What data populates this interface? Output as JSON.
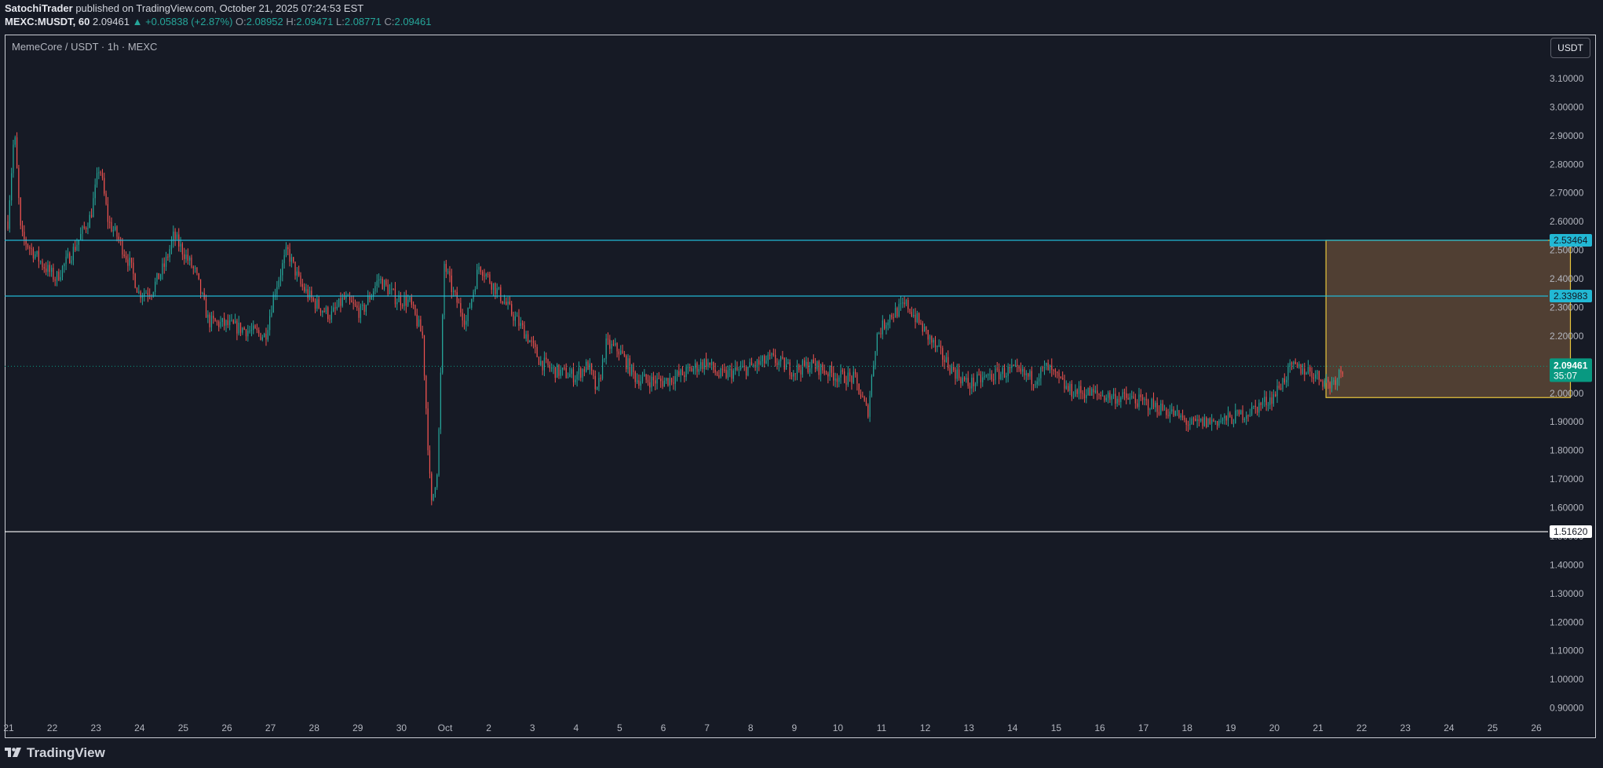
{
  "header": {
    "author": "SatochiTrader",
    "published": " published on TradingView.com, October 21, 2025 07:24:53 EST",
    "symbol": "MEXC:MUSDT, 60",
    "last": "2.09461",
    "change": "▲ +0.05838 (+2.87%)",
    "o_label": "O:",
    "o": "2.08952",
    "h_label": "H:",
    "h": "2.09471",
    "l_label": "L:",
    "l": "2.08771",
    "c_label": "C:",
    "c": "2.09461"
  },
  "symbol_title": "MemeCore / USDT · 1h · MEXC",
  "currency_button": "USDT",
  "footer": {
    "brand": "TradingView"
  },
  "chart_data": {
    "type": "candlestick",
    "title": "MemeCore / USDT · 1h · MEXC",
    "ylim": [
      0.85,
      3.15
    ],
    "y_ticks": [
      "3.10000",
      "3.00000",
      "2.90000",
      "2.80000",
      "2.70000",
      "2.60000",
      "2.50000",
      "2.40000",
      "2.30000",
      "2.20000",
      "2.10000",
      "2.00000",
      "1.90000",
      "1.80000",
      "1.70000",
      "1.60000",
      "1.50000",
      "1.40000",
      "1.30000",
      "1.20000",
      "1.10000",
      "1.00000",
      "0.90000"
    ],
    "x_ticks": [
      "21",
      "22",
      "23",
      "24",
      "25",
      "26",
      "27",
      "28",
      "29",
      "30",
      "Oct",
      "2",
      "3",
      "4",
      "5",
      "6",
      "7",
      "8",
      "9",
      "10",
      "11",
      "12",
      "13",
      "14",
      "15",
      "16",
      "17",
      "18",
      "19",
      "20",
      "21",
      "22",
      "23",
      "24",
      "25",
      "26"
    ],
    "x_range_days": [
      0,
      36
    ],
    "price_path": [
      [
        0.0,
        2.6
      ],
      [
        0.15,
        2.92
      ],
      [
        0.3,
        2.55
      ],
      [
        0.8,
        2.45
      ],
      [
        1.1,
        2.4
      ],
      [
        1.5,
        2.5
      ],
      [
        1.9,
        2.62
      ],
      [
        2.1,
        2.8
      ],
      [
        2.3,
        2.6
      ],
      [
        2.5,
        2.55
      ],
      [
        2.8,
        2.45
      ],
      [
        3.0,
        2.35
      ],
      [
        3.3,
        2.36
      ],
      [
        3.6,
        2.45
      ],
      [
        3.8,
        2.55
      ],
      [
        4.0,
        2.5
      ],
      [
        4.3,
        2.42
      ],
      [
        4.6,
        2.25
      ],
      [
        5.0,
        2.24
      ],
      [
        5.5,
        2.22
      ],
      [
        5.9,
        2.2
      ],
      [
        6.1,
        2.35
      ],
      [
        6.4,
        2.5
      ],
      [
        6.7,
        2.38
      ],
      [
        7.0,
        2.32
      ],
      [
        7.4,
        2.27
      ],
      [
        7.7,
        2.33
      ],
      [
        8.1,
        2.28
      ],
      [
        8.5,
        2.4
      ],
      [
        8.9,
        2.33
      ],
      [
        9.2,
        2.32
      ],
      [
        9.5,
        2.2
      ],
      [
        9.6,
        1.9
      ],
      [
        9.7,
        1.6
      ],
      [
        9.85,
        1.75
      ],
      [
        10.0,
        2.45
      ],
      [
        10.2,
        2.35
      ],
      [
        10.5,
        2.25
      ],
      [
        10.8,
        2.45
      ],
      [
        11.2,
        2.36
      ],
      [
        11.5,
        2.29
      ],
      [
        11.9,
        2.2
      ],
      [
        12.2,
        2.11
      ],
      [
        12.5,
        2.08
      ],
      [
        13.0,
        2.06
      ],
      [
        13.3,
        2.1
      ],
      [
        13.5,
        2.0
      ],
      [
        13.7,
        2.17
      ],
      [
        14.0,
        2.15
      ],
      [
        14.4,
        2.05
      ],
      [
        15.0,
        2.04
      ],
      [
        15.5,
        2.07
      ],
      [
        16.0,
        2.11
      ],
      [
        16.3,
        2.06
      ],
      [
        17.0,
        2.09
      ],
      [
        17.5,
        2.12
      ],
      [
        18.0,
        2.08
      ],
      [
        18.4,
        2.1
      ],
      [
        19.0,
        2.06
      ],
      [
        19.4,
        2.05
      ],
      [
        19.7,
        1.93
      ],
      [
        19.9,
        2.2
      ],
      [
        20.2,
        2.27
      ],
      [
        20.6,
        2.31
      ],
      [
        20.9,
        2.24
      ],
      [
        21.3,
        2.15
      ],
      [
        21.6,
        2.09
      ],
      [
        22.0,
        2.03
      ],
      [
        22.5,
        2.06
      ],
      [
        23.0,
        2.08
      ],
      [
        23.5,
        2.05
      ],
      [
        23.8,
        2.09
      ],
      [
        24.3,
        2.01
      ],
      [
        24.8,
        2.0
      ],
      [
        25.2,
        1.99
      ],
      [
        25.7,
        1.98
      ],
      [
        26.2,
        1.96
      ],
      [
        26.7,
        1.93
      ],
      [
        27.1,
        1.89
      ],
      [
        27.5,
        1.9
      ],
      [
        28.0,
        1.91
      ],
      [
        28.5,
        1.94
      ],
      [
        29.0,
        1.99
      ],
      [
        29.4,
        2.09
      ],
      [
        29.8,
        2.08
      ],
      [
        30.1,
        2.05
      ],
      [
        30.3,
        2.03
      ],
      [
        30.6,
        2.09
      ]
    ],
    "horizontal_lines": [
      {
        "price": 2.53464,
        "color": "#22b8d4",
        "label": "2.53464"
      },
      {
        "price": 2.33983,
        "color": "#22b8d4",
        "label": "2.33983"
      },
      {
        "price": 1.5162,
        "color": "#ffffff",
        "label": "1.51620"
      }
    ],
    "target_box": {
      "x_from_day": 30.2,
      "x_to_day": 35.8,
      "top_price": 2.53464,
      "bottom_price": 1.985,
      "fill": "#5a4636",
      "stroke": "#e8c63d"
    },
    "last_price": {
      "value": "2.09461",
      "countdown": "35:07",
      "color": "#089981"
    }
  },
  "colors": {
    "background": "#161a25",
    "up": "#26a69a",
    "down": "#ef5350",
    "axis_text": "#b2b5be"
  }
}
